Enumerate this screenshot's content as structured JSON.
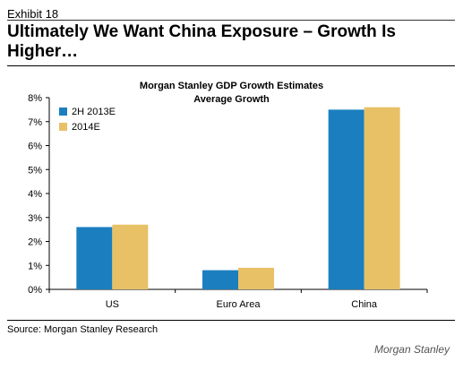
{
  "exhibit": "Exhibit 18",
  "headline": "Ultimately We Want China Exposure – Growth Is Higher…",
  "chart_title_line1": "Morgan Stanley GDP Growth Estimates",
  "chart_title_line2": "Average Growth",
  "source": "Source: Morgan Stanley Research",
  "brand": "Morgan Stanley",
  "colors": {
    "series1": "#1b7fbf",
    "series2": "#e8c166"
  },
  "chart_data": {
    "type": "bar",
    "title": "Morgan Stanley GDP Growth Estimates",
    "subtitle": "Average Growth",
    "categories": [
      "US",
      "Euro Area",
      "China"
    ],
    "series": [
      {
        "name": "2H 2013E",
        "values": [
          2.6,
          0.8,
          7.5
        ]
      },
      {
        "name": "2014E",
        "values": [
          2.7,
          0.9,
          7.6
        ]
      }
    ],
    "ylim": [
      0,
      8
    ],
    "yticks": [
      "0%",
      "1%",
      "2%",
      "3%",
      "4%",
      "5%",
      "6%",
      "7%",
      "8%"
    ],
    "legend": "top-left",
    "grid": false
  }
}
